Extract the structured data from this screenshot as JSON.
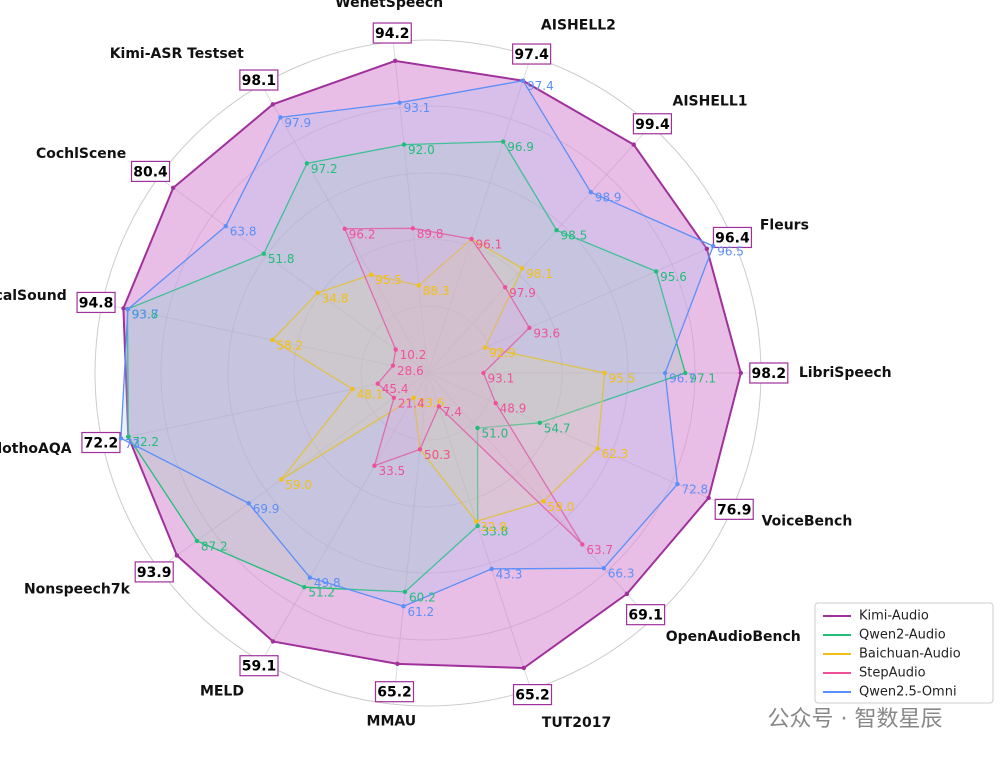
{
  "chart_data": {
    "type": "radar",
    "categories": [
      "LibriSpeech",
      "Fleurs",
      "AISHELL1",
      "AISHELL2",
      "WenetSpeech",
      "Kimi-ASR Testset",
      "CochlScene",
      "VocalSound",
      "ClothoAQA",
      "Nonspeech7k",
      "MELD",
      "MMAU",
      "TUT2017",
      "OpenAudioBench",
      "VoiceBench"
    ],
    "axis_lims": [
      [
        92,
        98.6
      ],
      [
        92,
        96.8
      ],
      [
        97,
        99.6
      ],
      [
        95,
        97.6
      ],
      [
        86,
        94.7
      ],
      [
        94,
        98.4
      ],
      [
        0,
        85
      ],
      [
        20,
        100
      ],
      [
        40,
        75
      ],
      [
        10,
        100
      ],
      [
        20,
        62
      ],
      [
        45,
        68
      ],
      [
        0,
        70
      ],
      [
        45,
        72
      ],
      [
        40,
        80
      ]
    ],
    "series": [
      {
        "name": "Kimi-Audio",
        "color": "#a0309c",
        "fill": "#cf6fc8",
        "values": [
          98.2,
          96.4,
          99.4,
          97.4,
          94.2,
          98.1,
          80.4,
          94.8,
          72.2,
          93.9,
          59.1,
          65.2,
          65.2,
          69.1,
          76.9
        ]
      },
      {
        "name": "Qwen2-Audio",
        "color": "#1fbf78",
        "fill": "#8fd9b0",
        "values": [
          97.1,
          95.6,
          98.5,
          96.9,
          92.0,
          97.2,
          51.8,
          93.8,
          72.2,
          87.2,
          51.2,
          60.2,
          33.8,
          51.0,
          54.7
        ],
        "value_labels": [
          "97.1",
          "95.6",
          "98.5",
          "96.9",
          "92.0",
          "97.2",
          "51.8",
          "93.8",
          "72.2",
          "87.2",
          "51.2",
          "60.2",
          "33.8",
          "51.0",
          "54.7"
        ]
      },
      {
        "name": "Baichuan-Audio",
        "color": "#f2c012",
        "fill": "#f5dd7a",
        "values": [
          95.5,
          92.9,
          98.1,
          96.1,
          88.3,
          95.5,
          34.8,
          58.2,
          48.1,
          59.0,
          23.6,
          50.3,
          32.8,
          59.0,
          62.3
        ],
        "value_labels": [
          "95.5",
          "92.9",
          "98.1",
          "96.1",
          "88.3",
          "95.5",
          "34.8",
          "58.2",
          "48.1",
          "59.0",
          "23.6",
          "50.3",
          "32.8",
          "59.0",
          "62.3"
        ]
      },
      {
        "name": "StepAudio",
        "color": "#f0509a",
        "fill": "#f7a0c8",
        "values": [
          93.1,
          93.6,
          97.9,
          96.1,
          89.8,
          96.2,
          10.2,
          28.6,
          45.4,
          21.4,
          33.5,
          50.3,
          7.4,
          63.7,
          48.9
        ]
      },
      {
        "name": "Qwen2.5-Omni",
        "color": "#5b8ff9",
        "fill": "#a9c4f5",
        "values": [
          96.7,
          96.5,
          98.9,
          97.4,
          93.1,
          97.9,
          63.8,
          93.7,
          73.0,
          69.9,
          49.8,
          61.2,
          43.3,
          66.3,
          72.8
        ]
      }
    ],
    "legend_position": "lower right",
    "watermark": "公众号 · 智数星辰"
  }
}
